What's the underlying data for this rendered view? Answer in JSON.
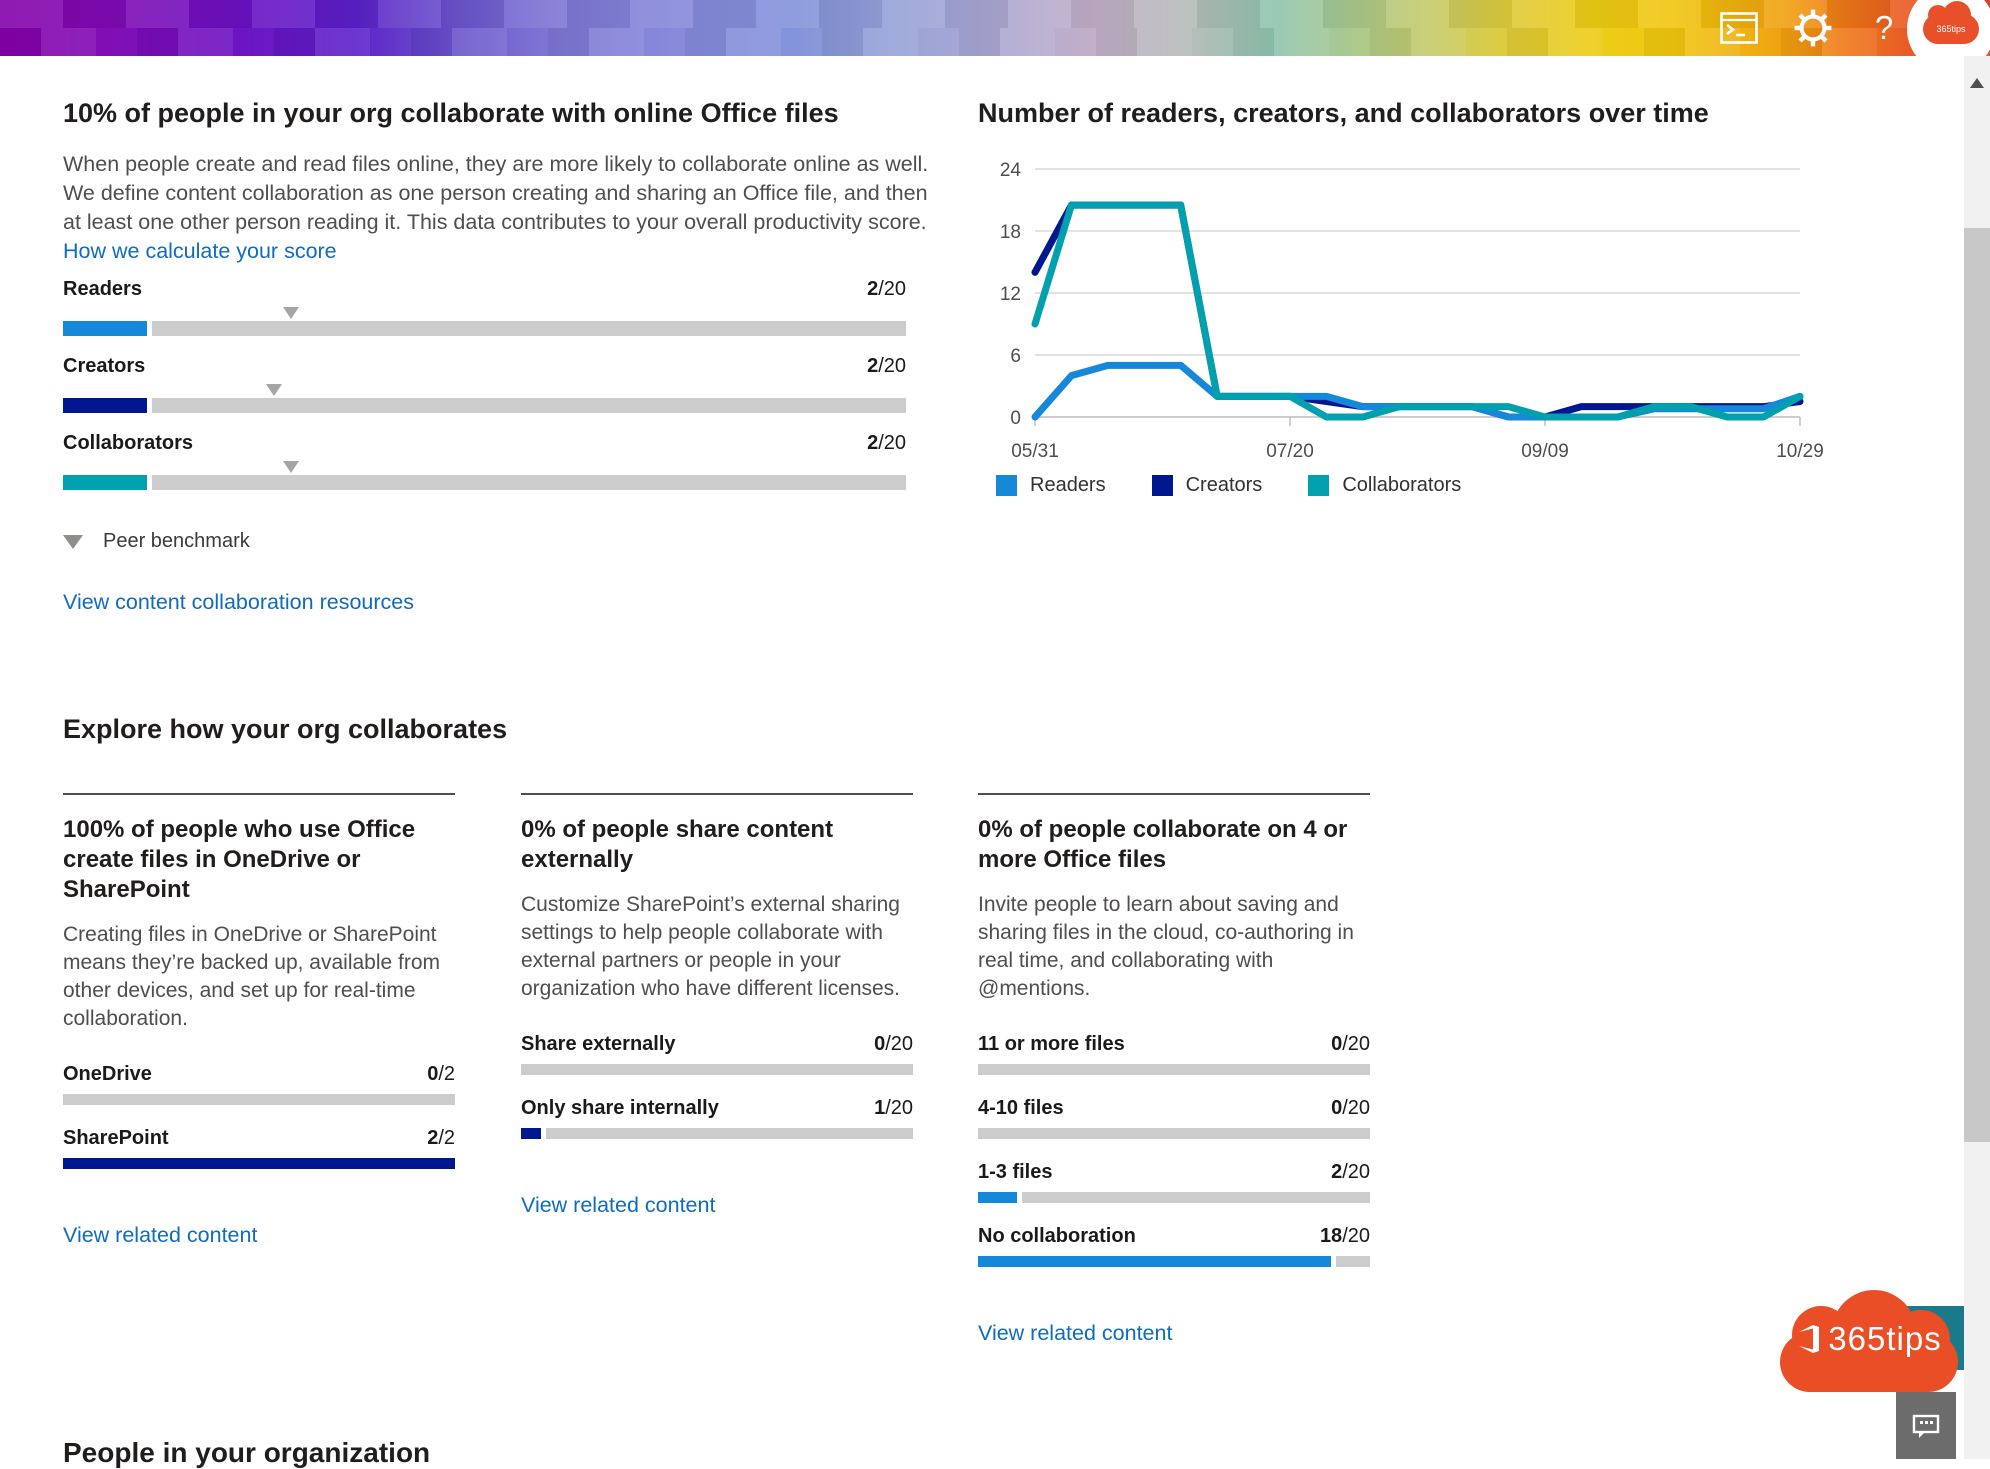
{
  "banner": {
    "help_glyph": "?",
    "icon_names": [
      "terminal-icon",
      "settings-gear-icon",
      "help-icon",
      "account-avatar-cloud-logo"
    ]
  },
  "collab": {
    "title": "10% of people in your org collaborate with online Office files",
    "description": "When people create and read files online, they are more likely to collaborate online as well. We define content collaboration as one person creating and sharing an Office file, and then at least one other person reading it. This data contributes to your overall productivity score.",
    "score_link": "How we calculate your score",
    "benchmark_label": "Peer benchmark",
    "resources_link": "View content collaboration resources",
    "metrics": [
      {
        "label": "Readers",
        "value": "2",
        "max_label": "/20",
        "pct": 10,
        "benchmark_pct": 27,
        "color": "#1588d9"
      },
      {
        "label": "Creators",
        "value": "2",
        "max_label": "/20",
        "pct": 10,
        "benchmark_pct": 25,
        "color": "#00188f"
      },
      {
        "label": "Collaborators",
        "value": "2",
        "max_label": "/20",
        "pct": 10,
        "benchmark_pct": 27,
        "color": "#00a0af"
      }
    ]
  },
  "chart_data": {
    "type": "line",
    "title": "Number of readers, creators, and collaborators over time",
    "xlabel": "",
    "ylabel": "",
    "x_tick_labels": [
      "05/31",
      "07/20",
      "09/09",
      "10/29"
    ],
    "ylim": [
      0,
      24
    ],
    "yticks": [
      0,
      6,
      12,
      18,
      24
    ],
    "grid": true,
    "legend_position": "bottom",
    "series": [
      {
        "name": "Readers",
        "color": "#1588d9",
        "values": [
          0,
          4,
          5,
          5,
          5,
          2,
          2,
          2,
          2,
          1,
          1,
          1,
          1,
          0,
          0,
          0,
          0,
          0.8,
          0.8,
          0.8,
          0.8,
          2
        ]
      },
      {
        "name": "Creators",
        "color": "#00188f",
        "values": [
          14,
          20.5,
          20.5,
          20.5,
          20.5,
          2,
          2,
          2,
          1.5,
          1,
          1,
          1,
          1,
          0,
          0,
          1,
          1,
          1,
          1,
          1,
          1,
          1.5
        ]
      },
      {
        "name": "Collaborators",
        "color": "#00a0af",
        "values": [
          9,
          20.5,
          20.5,
          20.5,
          20.5,
          2,
          2,
          2,
          0,
          0,
          1,
          1,
          1,
          1,
          0,
          0,
          0,
          1,
          1,
          0,
          0,
          2
        ]
      }
    ]
  },
  "explore": {
    "title": "Explore how your org collaborates",
    "cards": [
      {
        "title": "100% of people who use Office create files in OneDrive or SharePoint",
        "body": "Creating files in OneDrive or SharePoint means they’re backed up, available from other devices, and set up for real-time collaboration.",
        "link": "View related content",
        "metrics": [
          {
            "label": "OneDrive",
            "value": "0",
            "max_label": "/2",
            "pct": 0,
            "color": "#00188f"
          },
          {
            "label": "SharePoint",
            "value": "2",
            "max_label": "/2",
            "pct": 100,
            "color": "#00188f"
          }
        ]
      },
      {
        "title": "0% of people share content externally",
        "body": "Customize SharePoint’s external sharing settings to help people collaborate with external partners or people in your organization who have different licenses.",
        "link": "View related content",
        "metrics": [
          {
            "label": "Share externally",
            "value": "0",
            "max_label": "/20",
            "pct": 0,
            "color": "#00188f"
          },
          {
            "label": "Only share internally",
            "value": "1",
            "max_label": "/20",
            "pct": 5,
            "color": "#00188f"
          }
        ]
      },
      {
        "title": "0% of people collaborate on 4 or more Office files",
        "body": "Invite people to learn about saving and sharing files in the cloud, co-authoring in real time, and collaborating with @mentions.",
        "link": "View related content",
        "metrics": [
          {
            "label": "11 or more files",
            "value": "0",
            "max_label": "/20",
            "pct": 0,
            "color": "#1588d9"
          },
          {
            "label": "4-10 files",
            "value": "0",
            "max_label": "/20",
            "pct": 0,
            "color": "#1588d9"
          },
          {
            "label": "1-3 files",
            "value": "2",
            "max_label": "/20",
            "pct": 10,
            "color": "#1588d9"
          },
          {
            "label": "No collaboration",
            "value": "18",
            "max_label": "/20",
            "pct": 90,
            "color": "#1588d9"
          }
        ]
      }
    ]
  },
  "footer": {
    "heading": "People in your organization"
  },
  "overlay": {
    "logo_text": "365tips"
  }
}
